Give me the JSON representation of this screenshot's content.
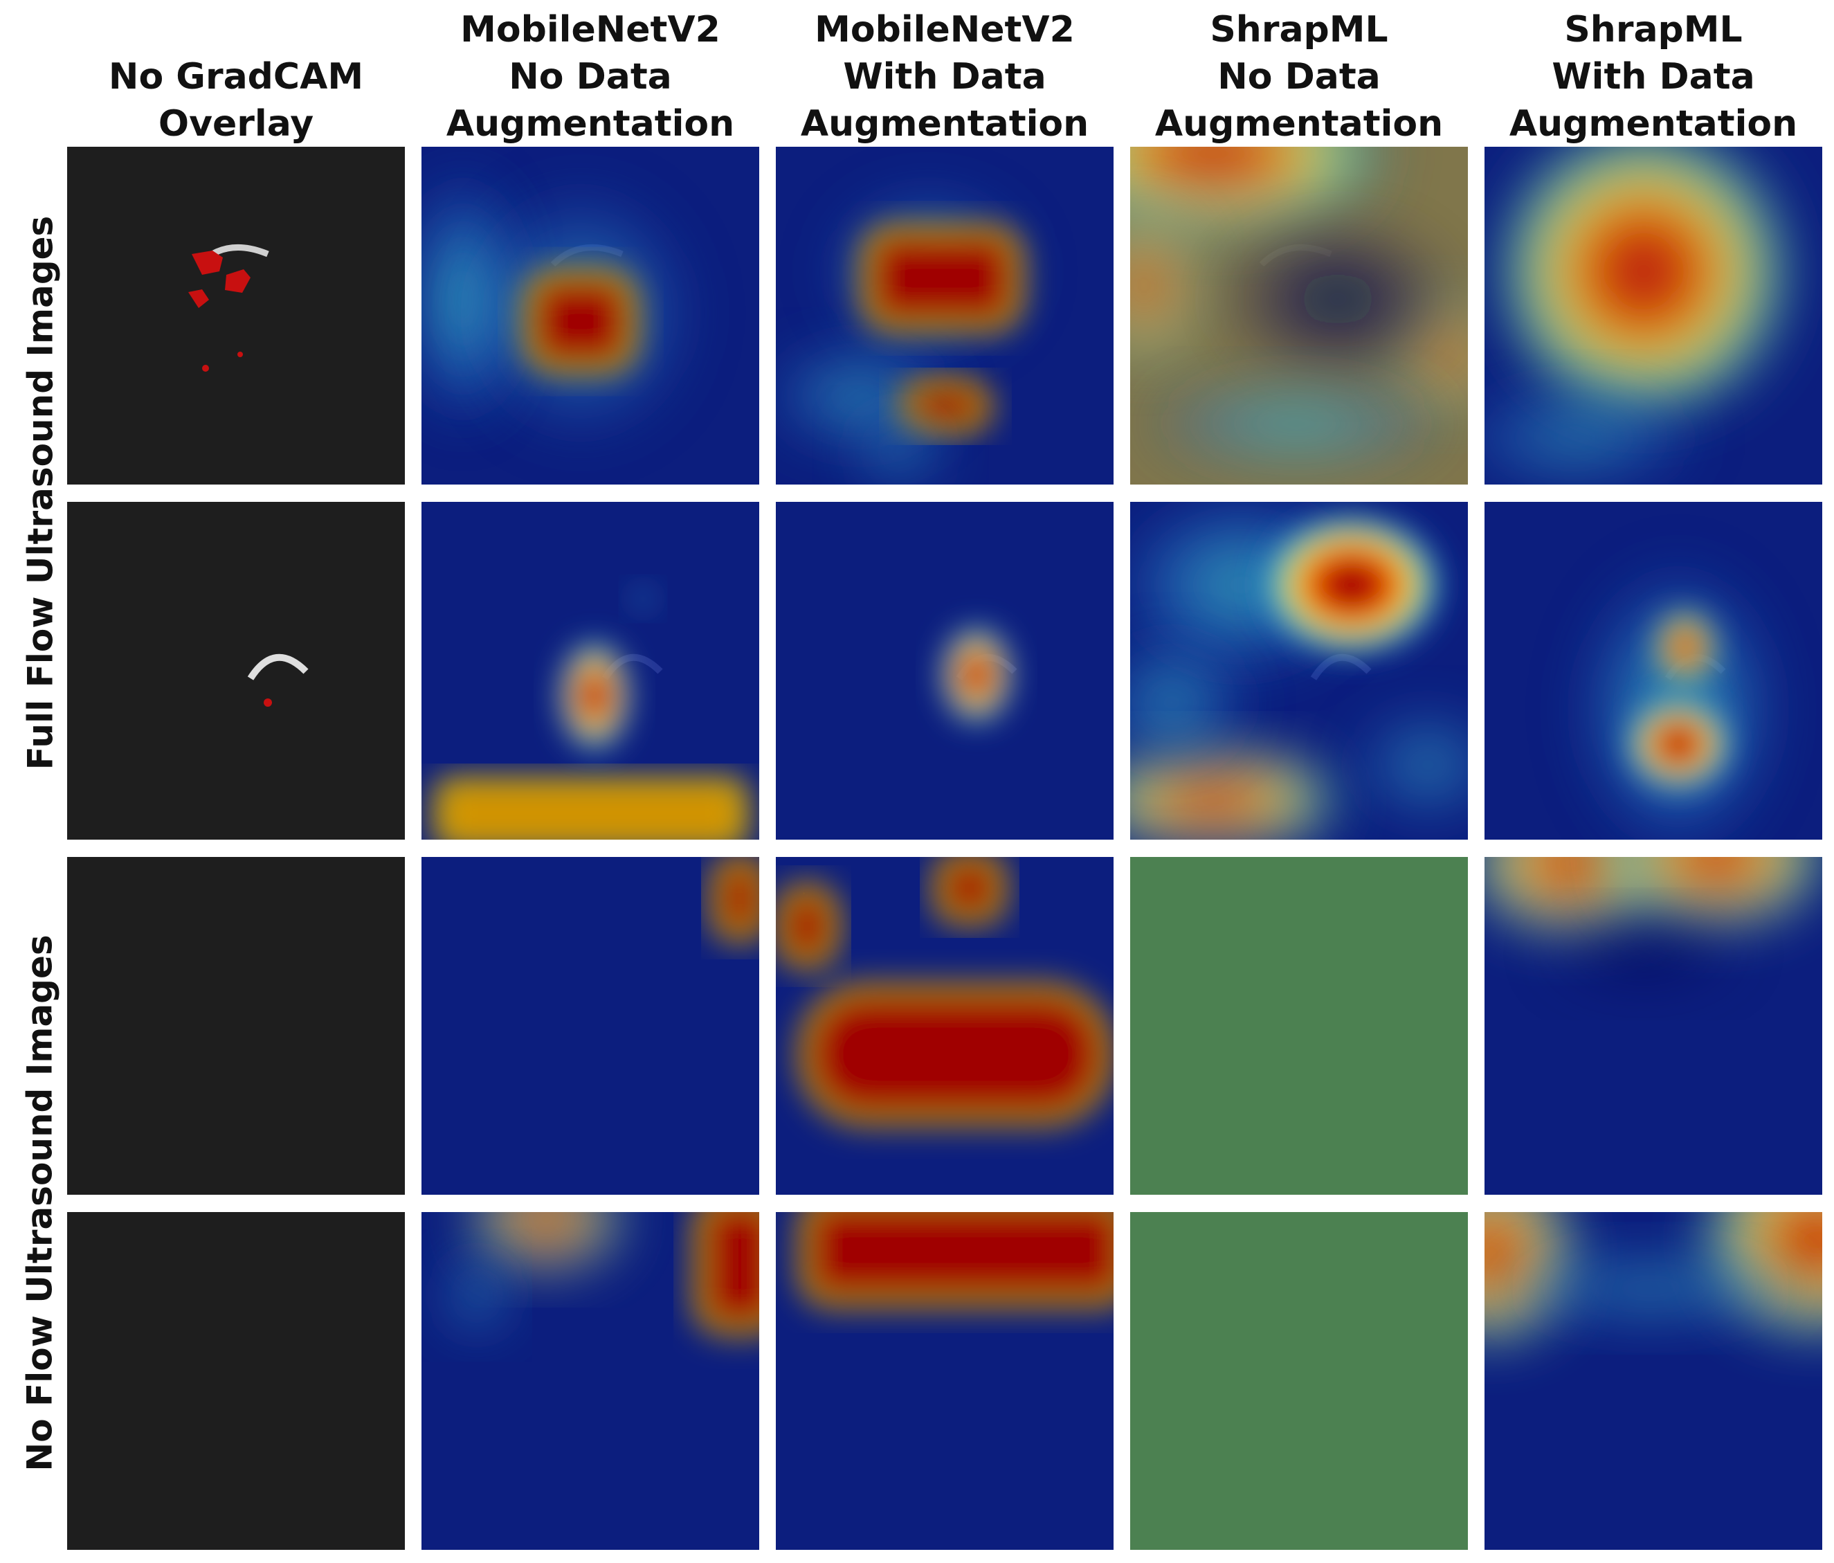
{
  "columns": [
    {
      "lines": [
        "No GradCAM",
        "Overlay"
      ]
    },
    {
      "lines": [
        "MobileNetV2",
        "No Data",
        "Augmentation"
      ]
    },
    {
      "lines": [
        "MobileNetV2",
        "With Data",
        "Augmentation"
      ]
    },
    {
      "lines": [
        "ShrapML",
        "No Data",
        "Augmentation"
      ]
    },
    {
      "lines": [
        "ShrapML",
        "With Data",
        "Augmentation"
      ]
    }
  ],
  "row_groups": [
    {
      "label": "Full Flow Ultrasound Images"
    },
    {
      "label": "No Flow Ultrasound Images"
    }
  ],
  "colors": {
    "ultrasound_background": "#1e1e1e",
    "heatmap_low": "#0a1f8c",
    "heatmap_high": "#8b0000",
    "flat_overlay": "#55935a",
    "flow_marker": "#c81010"
  }
}
